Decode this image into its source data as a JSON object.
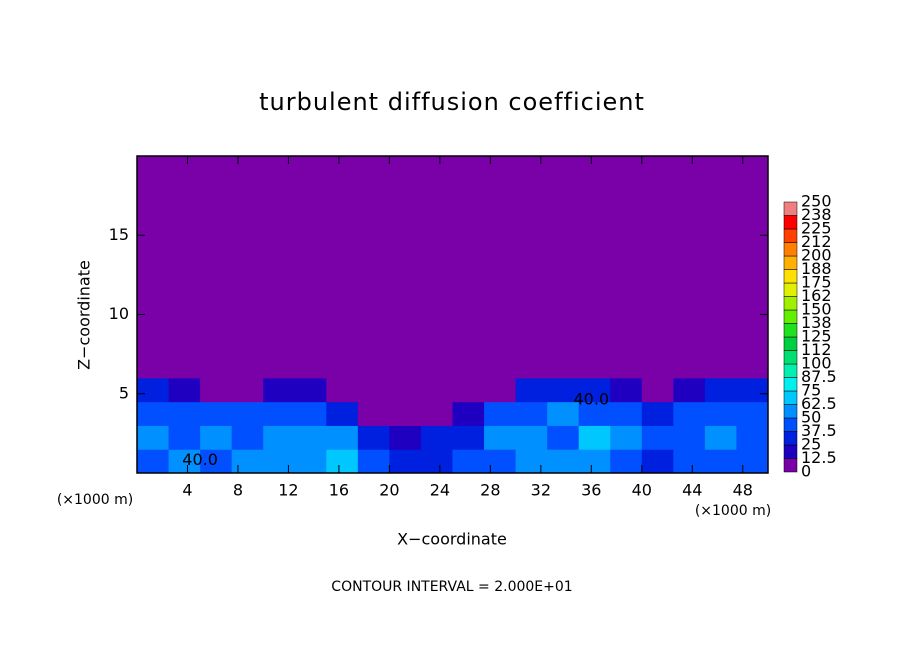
{
  "chart_data": {
    "type": "heatmap",
    "title": "turbulent diffusion coefficient",
    "x_label": "X−coordinate",
    "y_label": "Z−coordinate",
    "x_unit_label": "(×1000 m)",
    "y_unit_label": "(×1000 m)",
    "footnote": "CONTOUR INTERVAL = 2.000E+01",
    "xlim": [
      0,
      50
    ],
    "ylim": [
      0,
      20
    ],
    "xticks": [
      4,
      8,
      12,
      16,
      20,
      24,
      28,
      32,
      36,
      40,
      44,
      48
    ],
    "yticks": [
      5,
      10,
      15
    ],
    "x_edges": [
      0,
      2.5,
      5,
      7.5,
      10,
      12.5,
      15,
      17.5,
      20,
      22.5,
      25,
      27.5,
      30,
      32.5,
      35,
      37.5,
      40,
      42.5,
      45,
      47.5,
      50
    ],
    "z_edges": [
      0,
      1.5,
      3,
      4.5,
      6,
      20
    ],
    "values": [
      [
        45,
        50,
        40,
        60,
        55,
        50,
        70,
        40,
        30,
        35,
        40,
        45,
        55,
        50,
        60,
        45,
        35,
        40,
        45,
        40
      ],
      [
        50,
        45,
        55,
        45,
        50,
        60,
        55,
        35,
        20,
        25,
        35,
        55,
        60,
        45,
        65,
        55,
        40,
        45,
        50,
        45
      ],
      [
        40,
        45,
        40,
        45,
        40,
        45,
        30,
        10,
        5,
        10,
        15,
        45,
        45,
        50,
        40,
        45,
        35,
        40,
        45,
        40
      ],
      [
        30,
        15,
        10,
        10,
        15,
        20,
        10,
        0,
        0,
        0,
        0,
        5,
        25,
        30,
        25,
        15,
        5,
        20,
        25,
        30
      ],
      [
        0,
        0,
        0,
        0,
        0,
        0,
        0,
        0,
        0,
        0,
        0,
        0,
        0,
        0,
        0,
        0,
        0,
        0,
        0,
        0
      ]
    ],
    "annotations": [
      {
        "text": "40.0",
        "x": 5,
        "z": 0.8
      },
      {
        "text": "40.0",
        "x": 36,
        "z": 4.6
      }
    ],
    "colorbar": {
      "levels": [
        0,
        12.5,
        25,
        37.5,
        50,
        62.5,
        75,
        87.5,
        100,
        {
          "value": 112.5,
          "label": "112"
        },
        125,
        {
          "value": 137.5,
          "label": "138"
        },
        150,
        {
          "value": 162.5,
          "label": "162"
        },
        175,
        {
          "value": 187.5,
          "label": "188"
        },
        200,
        {
          "value": 212.5,
          "label": "212"
        },
        225,
        {
          "value": 237.5,
          "label": "238"
        },
        250
      ],
      "colors": [
        "#7a00a8",
        "#2000c0",
        "#0020e0",
        "#0050ff",
        "#0090ff",
        "#00c8ff",
        "#00f0f0",
        "#00f0b0",
        "#00e070",
        "#00d040",
        "#20e020",
        "#60f000",
        "#a0f000",
        "#e0f000",
        "#ffe000",
        "#ffb000",
        "#ff8000",
        "#ff4000",
        "#ff0000",
        "#f08080"
      ]
    }
  }
}
